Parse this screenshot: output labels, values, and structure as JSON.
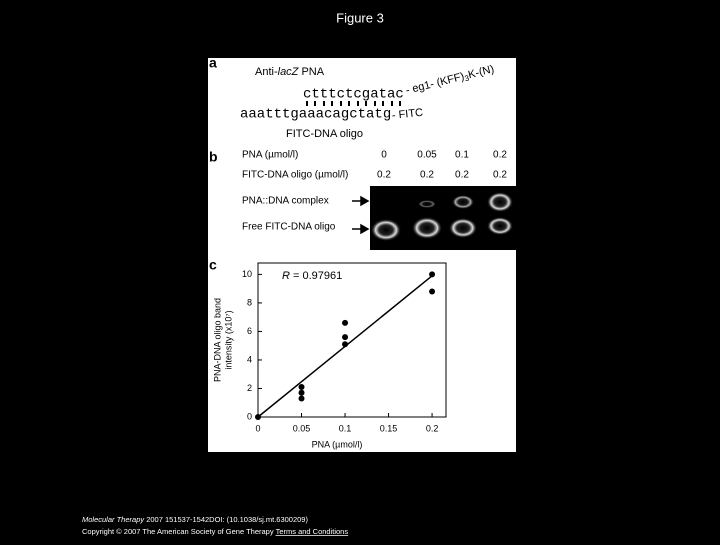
{
  "title": "Figure 3",
  "panel_a": {
    "label": "a",
    "title_prefix": "Anti-",
    "title_italic": "lacZ",
    "title_suffix": " PNA",
    "pna_sequence": "ctttctcgatac",
    "pna_mod_start": "- eg1- (KFF)",
    "pna_mod_sub": "3",
    "pna_mod_end": "K-(N)",
    "dna_sequence": "aaatttgaaacagctatg",
    "dna_mod": "- FITC",
    "dna_label": "FITC-DNA oligo"
  },
  "panel_b": {
    "label": "b",
    "row_labels": [
      "PNA (µmol/l)",
      "FITC-DNA oligo (µmol/l)"
    ],
    "pna": [
      "0",
      "0.05",
      "0.1",
      "0.2"
    ],
    "oligo": [
      "0.2",
      "0.2",
      "0.2",
      "0.2"
    ],
    "band_labels": [
      "PNA::DNA complex",
      "Free FITC-DNA oligo"
    ]
  },
  "chart_data": {
    "type": "scatter",
    "label": "c",
    "annotation_italic": "R",
    "annotation": " = 0.97961",
    "xlabel": "PNA (µmol/l)",
    "ylabel": [
      "PNA-DNA oligo band",
      "intensity (x10⁷)"
    ],
    "x": [
      0,
      0.05,
      0.05,
      0.05,
      0.1,
      0.1,
      0.1,
      0.2,
      0.2
    ],
    "values": [
      0,
      2.1,
      1.7,
      1.3,
      6.6,
      5.6,
      5.1,
      10,
      8.8
    ],
    "color": "#000000",
    "fit": {
      "x": [
        0,
        0.2
      ],
      "values": [
        0,
        9.9
      ]
    },
    "xlim": [
      0,
      0.216
    ],
    "ylim": [
      0,
      10.8
    ],
    "xticks": [
      0,
      0.05,
      0.1,
      0.15,
      0.2
    ],
    "yticks": [
      0,
      2,
      4,
      6,
      8,
      10
    ]
  },
  "footer": {
    "journal": "Molecular Therapy",
    "citation": " 2007 151537-1542DOI: (10.1038/sj.mt.6300209)",
    "copyright": "Copyright © 2007 The American Society of Gene Therapy ",
    "link": "Terms and Conditions"
  }
}
